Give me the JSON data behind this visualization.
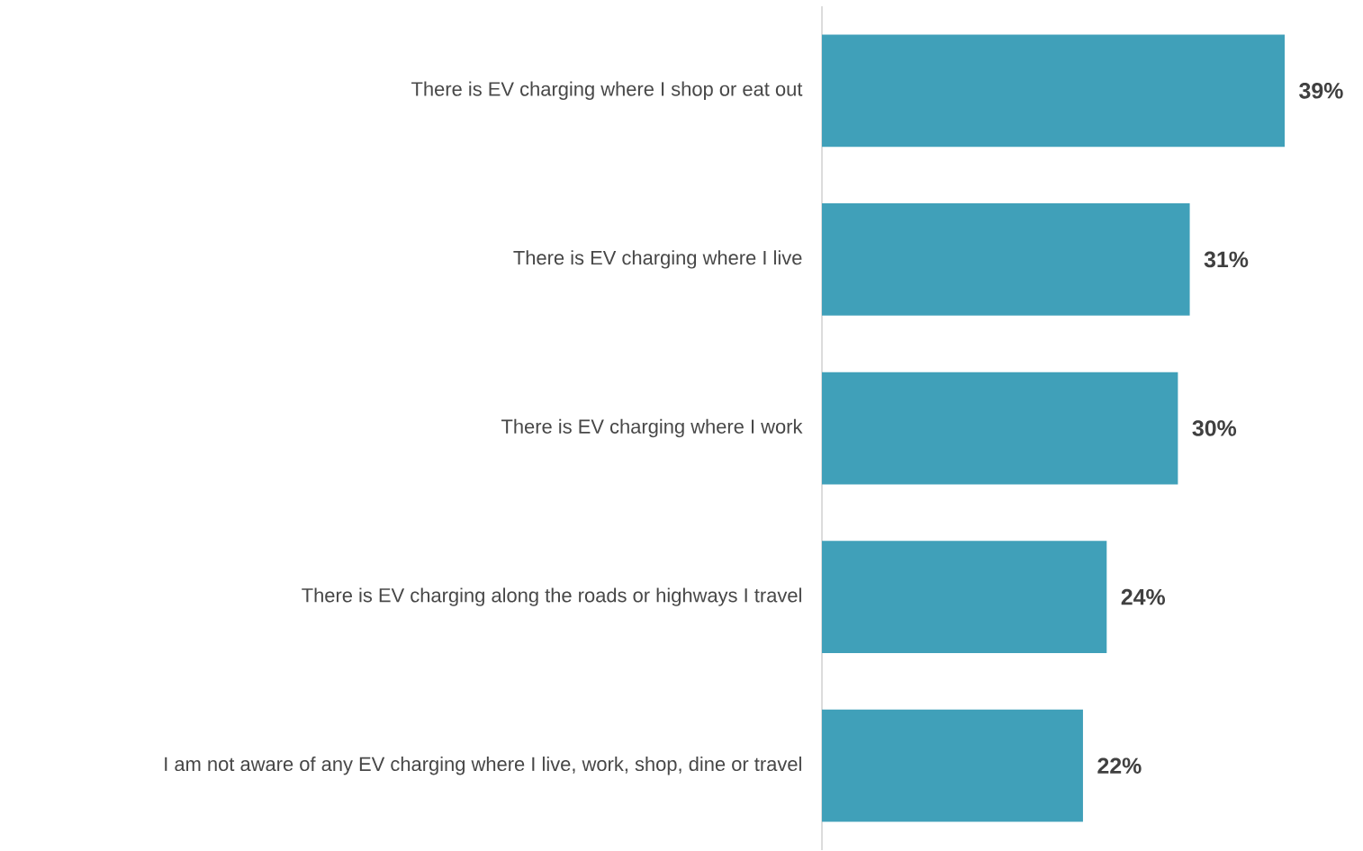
{
  "chart_data": {
    "type": "bar",
    "orientation": "horizontal",
    "categories": [
      "There is EV charging where I shop or eat out",
      "There is EV charging where I live",
      "There is EV charging where I work",
      "There is EV charging along the roads or highways I travel",
      "I am not aware of any EV charging where I live, work, shop, dine or travel"
    ],
    "values": [
      39,
      31,
      30,
      24,
      22
    ],
    "value_labels": [
      "39%",
      "31%",
      "30%",
      "24%",
      "22%"
    ],
    "color": "#40a0b9"
  }
}
